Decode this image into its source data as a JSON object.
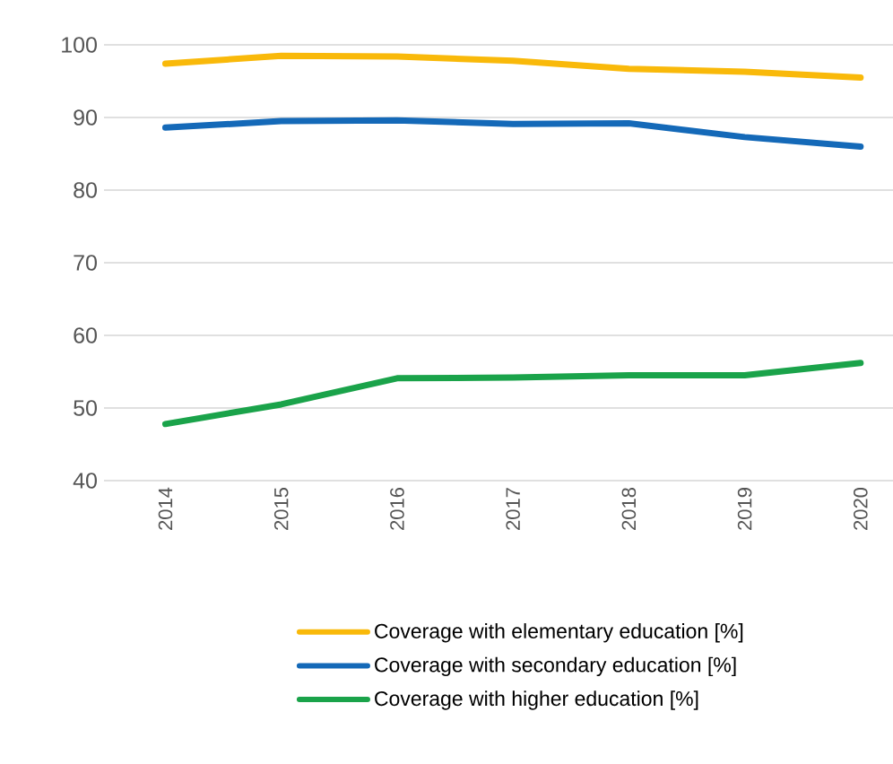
{
  "chart_data": {
    "type": "line",
    "categories": [
      "2014",
      "2015",
      "2016",
      "2017",
      "2018",
      "2019",
      "2020"
    ],
    "series": [
      {
        "name": "Coverage with elementary education [%]",
        "color": "#f9b90a",
        "values": [
          97.4,
          98.5,
          98.4,
          97.8,
          96.7,
          96.3,
          95.5
        ]
      },
      {
        "name": "Coverage with secondary education [%]",
        "color": "#1469b8",
        "values": [
          88.6,
          89.5,
          89.6,
          89.1,
          89.2,
          87.3,
          86.0
        ]
      },
      {
        "name": "Coverage with higher education [%]",
        "color": "#1aa34a",
        "values": [
          47.8,
          50.5,
          54.1,
          54.2,
          54.5,
          54.5,
          56.2
        ]
      }
    ],
    "ylim": [
      40,
      100
    ],
    "yticks": [
      40,
      50,
      60,
      70,
      80,
      90,
      100
    ],
    "grid": "y",
    "legend": "bottom",
    "marker": "none",
    "line_style": "solid"
  }
}
